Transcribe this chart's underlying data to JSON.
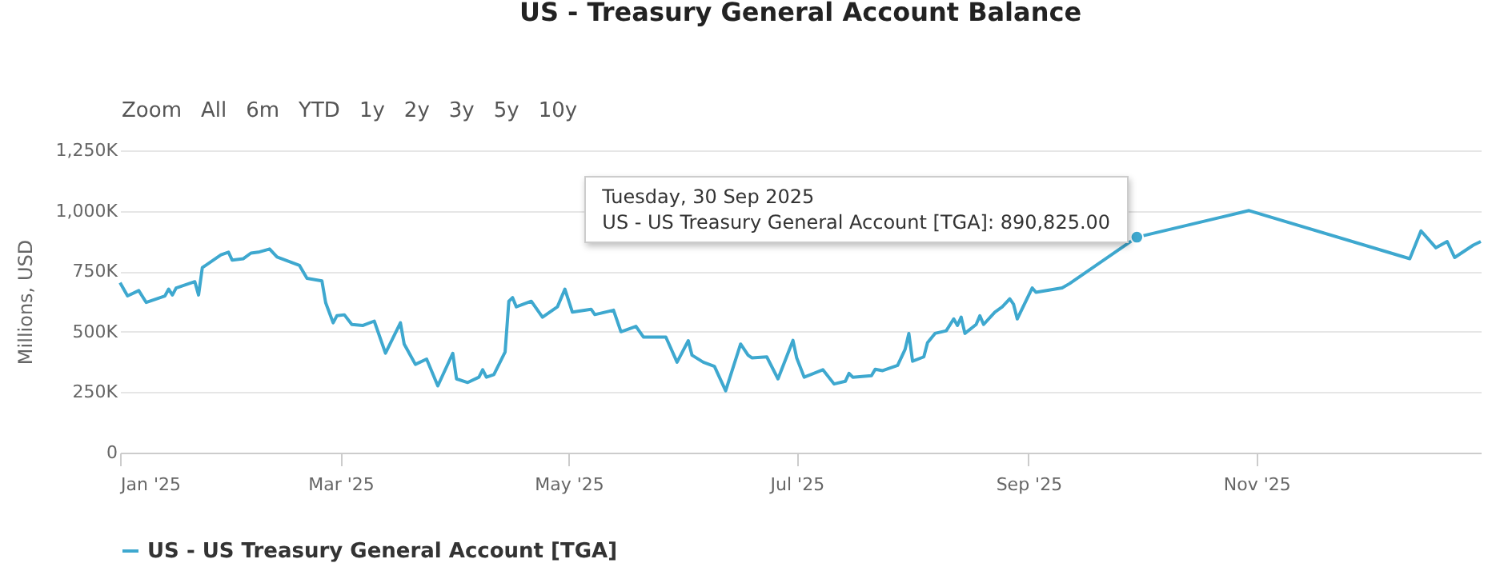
{
  "chart_data": {
    "type": "line",
    "title": "US - Treasury General Account Balance",
    "ylabel": "Millions, USD",
    "annotations": [
      {
        "text": "Tuesday, 30 Sep 2025\nUS - US Treasury General Account [TGA]: 890,825.00",
        "x": "2025-09-30",
        "y": 890825
      },
      "Zoom",
      "All",
      "6m",
      "YTD",
      "1y",
      "2y",
      "3y",
      "5y",
      "10y"
    ],
    "xlim": [
      "2025-01-01",
      "2025-12-31"
    ],
    "xticks": [
      {
        "value": "2025-01-01",
        "label": "Jan '25"
      },
      {
        "value": "2025-03-01",
        "label": "Mar '25"
      },
      {
        "value": "2025-05-01",
        "label": "May '25"
      },
      {
        "value": "2025-07-01",
        "label": "Jul '25"
      },
      {
        "value": "2025-09-01",
        "label": "Sep '25"
      },
      {
        "value": "2025-11-01",
        "label": "Nov '25"
      }
    ],
    "ylim": [
      0,
      1250000
    ],
    "yticks": [
      0,
      {
        "value": 250000,
        "label": "250K"
      },
      {
        "value": 500000,
        "label": "500K"
      },
      {
        "value": 750000,
        "label": "750K"
      },
      {
        "value": 1000000,
        "label": "1,000K"
      },
      {
        "value": 1250000,
        "label": "1,250K"
      }
    ],
    "grid": "y",
    "legend": "bottom",
    "marker": "none",
    "line_style": "solid",
    "series": [
      {
        "name": "US - US Treasury General Account [TGA]",
        "color": "#3ea8cf",
        "x": [
          "2025-01-01",
          "2025-01-03",
          "2025-01-06",
          "2025-01-08",
          "2025-01-13",
          "2025-01-14",
          "2025-01-15",
          "2025-01-16",
          "2025-01-21",
          "2025-01-22",
          "2025-01-23",
          "2025-01-28",
          "2025-01-30",
          "2025-01-31",
          "2025-02-03",
          "2025-02-05",
          "2025-02-07",
          "2025-02-10",
          "2025-02-12",
          "2025-02-18",
          "2025-02-20",
          "2025-02-24",
          "2025-02-25",
          "2025-02-27",
          "2025-02-28",
          "2025-03-02",
          "2025-03-04",
          "2025-03-07",
          "2025-03-10",
          "2025-03-13",
          "2025-03-17",
          "2025-03-18",
          "2025-03-21",
          "2025-03-24",
          "2025-03-27",
          "2025-03-31",
          "2025-04-01",
          "2025-04-04",
          "2025-04-07",
          "2025-04-08",
          "2025-04-09",
          "2025-04-11",
          "2025-04-14",
          "2025-04-15",
          "2025-04-16",
          "2025-04-17",
          "2025-04-21",
          "2025-04-24",
          "2025-04-28",
          "2025-04-30",
          "2025-05-02",
          "2025-05-07",
          "2025-05-08",
          "2025-05-13",
          "2025-05-15",
          "2025-05-19",
          "2025-05-21",
          "2025-05-27",
          "2025-05-30",
          "2025-06-02",
          "2025-06-03",
          "2025-06-06",
          "2025-06-09",
          "2025-06-12",
          "2025-06-16",
          "2025-06-18",
          "2025-06-19",
          "2025-06-23",
          "2025-06-26",
          "2025-06-30",
          "2025-07-01",
          "2025-07-03",
          "2025-07-08",
          "2025-07-11",
          "2025-07-14",
          "2025-07-15",
          "2025-07-16",
          "2025-07-21",
          "2025-07-22",
          "2025-07-24",
          "2025-07-28",
          "2025-07-30",
          "2025-07-31",
          "2025-08-01",
          "2025-08-04",
          "2025-08-05",
          "2025-08-07",
          "2025-08-10",
          "2025-08-12",
          "2025-08-13",
          "2025-08-14",
          "2025-08-15",
          "2025-08-18",
          "2025-08-19",
          "2025-08-20",
          "2025-08-23",
          "2025-08-25",
          "2025-08-27",
          "2025-08-28",
          "2025-08-29",
          "2025-09-02",
          "2025-09-03",
          "2025-09-10",
          "2025-09-12",
          "2025-09-30",
          "2025-10-30",
          "2025-12-12",
          "2025-12-15",
          "2025-12-19",
          "2025-12-22",
          "2025-12-24",
          "2025-12-29",
          "2025-12-31"
        ],
        "values": [
          703000,
          648000,
          670000,
          621000,
          648000,
          676000,
          652000,
          681000,
          707000,
          652000,
          765000,
          818000,
          829000,
          796000,
          802000,
          825000,
          829000,
          842000,
          809000,
          774000,
          721000,
          710000,
          620000,
          537000,
          566000,
          570000,
          530000,
          526000,
          544000,
          411000,
          537000,
          449000,
          365000,
          387000,
          276000,
          411000,
          305000,
          290000,
          312000,
          343000,
          312000,
          323000,
          416000,
          626000,
          641000,
          603000,
          626000,
          560000,
          603000,
          676000,
          581000,
          593000,
          571000,
          589000,
          500000,
          522000,
          478000,
          478000,
          374000,
          463000,
          403000,
          374000,
          357000,
          256000,
          449000,
          403000,
          392000,
          396000,
          305000,
          464000,
          392000,
          312000,
          343000,
          284000,
          295000,
          328000,
          312000,
          318000,
          345000,
          339000,
          361000,
          427000,
          493000,
          378000,
          396000,
          455000,
          493000,
          504000,
          553000,
          526000,
          560000,
          493000,
          530000,
          566000,
          530000,
          581000,
          603000,
          636000,
          614000,
          553000,
          681000,
          663000,
          681000,
          699000,
          890825,
          1001000,
          802000,
          917000,
          847000,
          873000,
          807000,
          858000,
          873000
        ]
      }
    ]
  }
}
